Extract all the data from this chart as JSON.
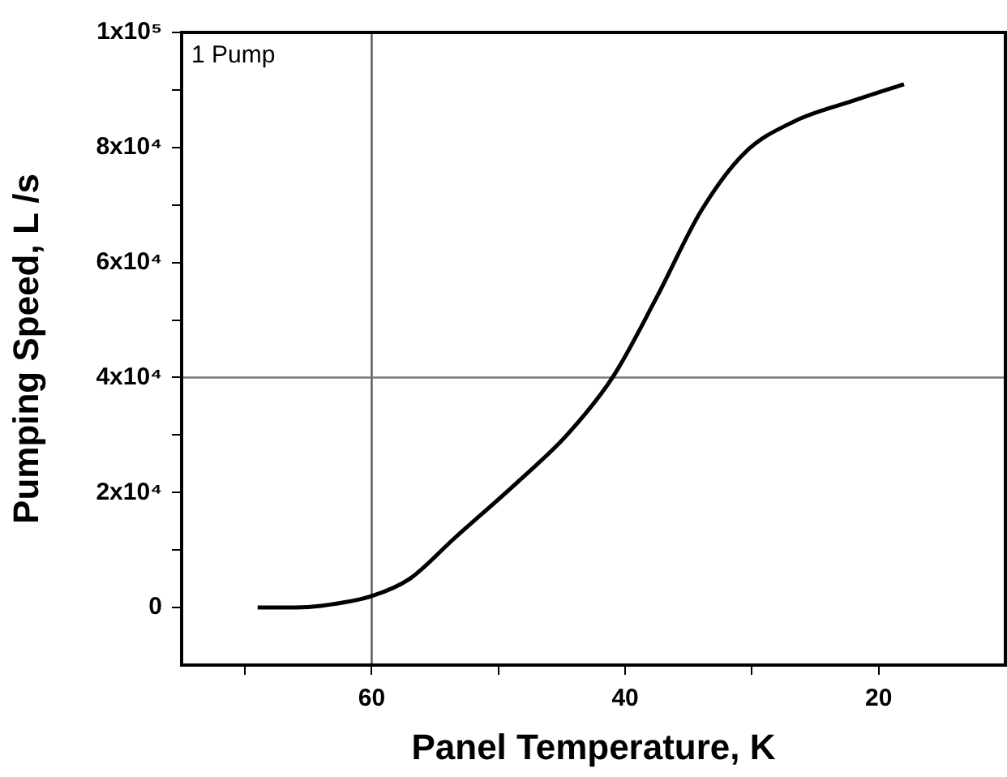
{
  "chart_data": {
    "type": "line",
    "xlabel": "Panel Temperature, K",
    "ylabel": "Pumping Speed, L /s",
    "x": [
      69,
      66,
      64,
      60,
      57,
      53.5,
      48.4,
      44.6,
      41,
      37.5,
      34,
      30.6,
      26.7,
      22.2,
      18
    ],
    "series": [
      {
        "color": "#000000",
        "values": [
          0,
          0,
          300,
          2000,
          5000,
          12000,
          22000,
          30000,
          40000,
          54000,
          69000,
          79000,
          84500,
          88000,
          91000
        ]
      }
    ],
    "xlim": [
      75,
      10
    ],
    "xticks": [
      {
        "value": 70,
        "label": null
      },
      60,
      {
        "value": 50,
        "label": null
      },
      40,
      {
        "value": 30,
        "label": null
      },
      20
    ],
    "ylim": [
      -10000,
      100000
    ],
    "yticks": [
      {
        "value": 0,
        "label": "0"
      },
      {
        "value": 20000,
        "label": "2x10⁴"
      },
      {
        "value": 40000,
        "label": "4x10⁴"
      },
      {
        "value": 60000,
        "label": "6x10⁴"
      },
      {
        "value": 80000,
        "label": "8x10⁴"
      },
      {
        "value": 100000,
        "label": "1x10⁵"
      },
      {
        "value": 10000,
        "label": null
      },
      {
        "value": 30000,
        "label": null
      },
      {
        "value": 50000,
        "label": null
      },
      {
        "value": 70000,
        "label": null
      },
      {
        "value": 90000,
        "label": null
      }
    ],
    "ref_lines": [
      {
        "axis": "x",
        "value": 60,
        "color": "#555555"
      },
      {
        "axis": "y",
        "value": 40000,
        "color": "#777777"
      }
    ],
    "annotations": [
      "1 Pump"
    ],
    "grid": false,
    "legend": false,
    "marker": "none",
    "line_style": "solid"
  }
}
